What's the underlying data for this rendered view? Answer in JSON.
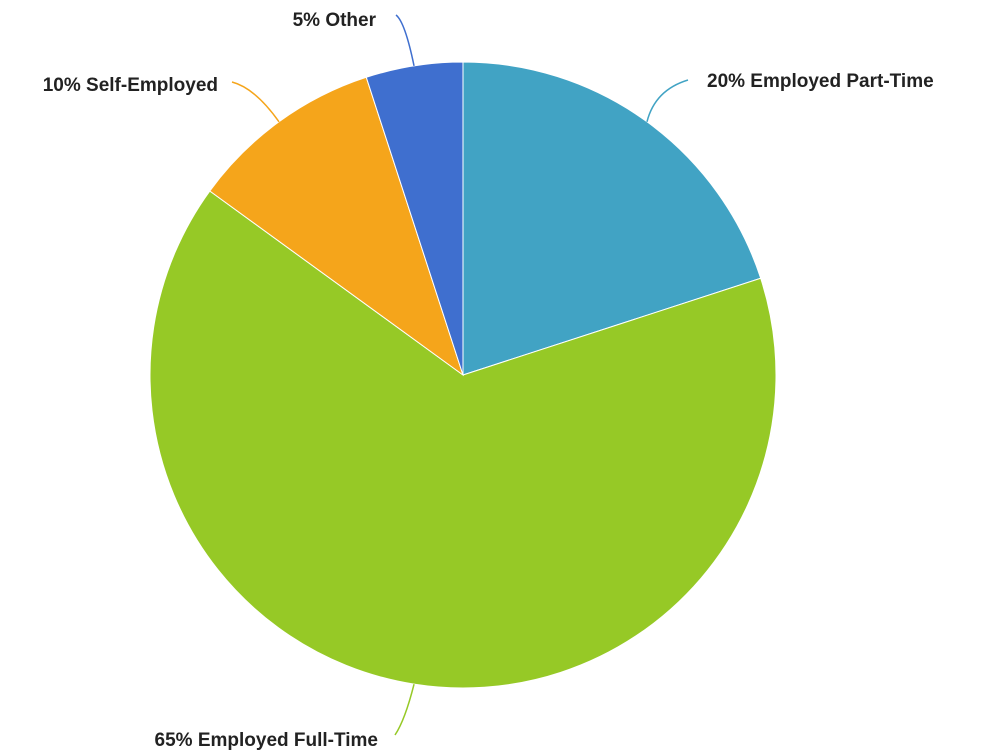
{
  "chart_data": {
    "type": "pie",
    "title": "",
    "slices": [
      {
        "category": "Employed Part-Time",
        "value": 20,
        "label": "20% Employed Part-Time",
        "color": "#41a3c4"
      },
      {
        "category": "Employed Full-Time",
        "value": 65,
        "label": "65% Employed Full-Time",
        "color": "#96c926"
      },
      {
        "category": "Self-Employed",
        "value": 10,
        "label": "10% Self-Employed",
        "color": "#f5a51b"
      },
      {
        "category": "Other",
        "value": 5,
        "label": "5% Other",
        "color": "#3f6fcf"
      }
    ],
    "start_angle": "12 o'clock",
    "direction": "clockwise",
    "legend": "none"
  }
}
